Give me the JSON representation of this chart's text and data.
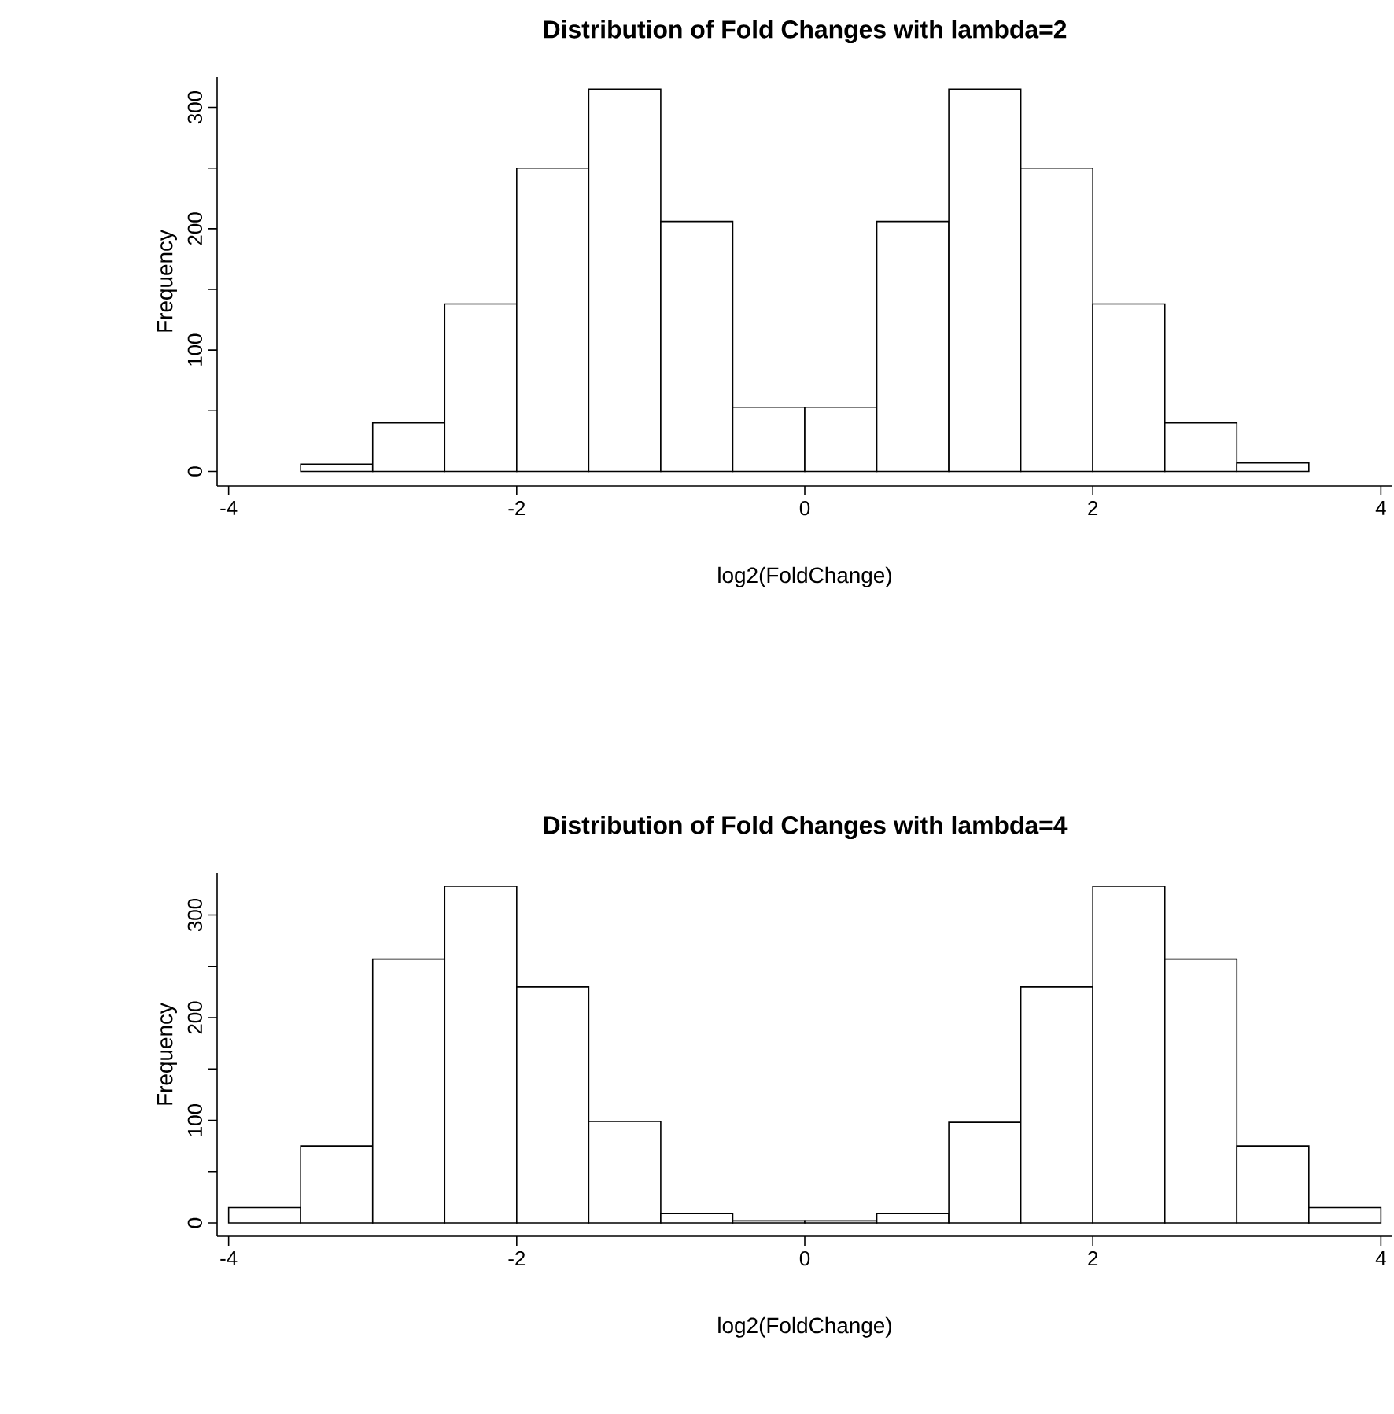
{
  "chart_data": [
    {
      "type": "histogram",
      "title": "Distribution of Fold Changes with lambda=2",
      "xlabel": "log2(FoldChange)",
      "ylabel": "Frequency",
      "color": "#ffffff",
      "bins": [
        -3.5,
        -3,
        -2.5,
        -2,
        -1.5,
        -1,
        -0.5,
        0,
        0.5,
        1,
        1.5,
        2,
        2.5,
        3,
        3.5
      ],
      "values": [
        6,
        40,
        138,
        250,
        315,
        206,
        53,
        53,
        206,
        315,
        250,
        138,
        40,
        7
      ],
      "xlim": [
        -4.08,
        4.08
      ],
      "ylim": [
        -12,
        325
      ],
      "xticks": [
        -4,
        -2,
        0,
        2,
        4
      ],
      "yticks": [
        0,
        {
          "value": 50,
          "label": null
        },
        100,
        {
          "value": 150,
          "label": null
        },
        200,
        {
          "value": 250,
          "label": null
        },
        300
      ]
    },
    {
      "type": "histogram",
      "title": "Distribution of Fold Changes with lambda=4",
      "xlabel": "log2(FoldChange)",
      "ylabel": "Frequency",
      "color": "#ffffff",
      "bins": [
        -4,
        -3.5,
        -3,
        -2.5,
        -2,
        -1.5,
        -1,
        -0.5,
        0,
        0.5,
        1,
        1.5,
        2,
        2.5,
        3,
        3.5,
        4
      ],
      "values": [
        15,
        75,
        257,
        328,
        230,
        99,
        9,
        2,
        2,
        9,
        98,
        230,
        328,
        257,
        75,
        15
      ],
      "xlim": [
        -4.08,
        4.08
      ],
      "ylim": [
        -13,
        341
      ],
      "xticks": [
        -4,
        -2,
        0,
        2,
        4
      ],
      "yticks": [
        0,
        {
          "value": 50,
          "label": null
        },
        100,
        {
          "value": 150,
          "label": null
        },
        200,
        {
          "value": 250,
          "label": null
        },
        300
      ]
    }
  ]
}
